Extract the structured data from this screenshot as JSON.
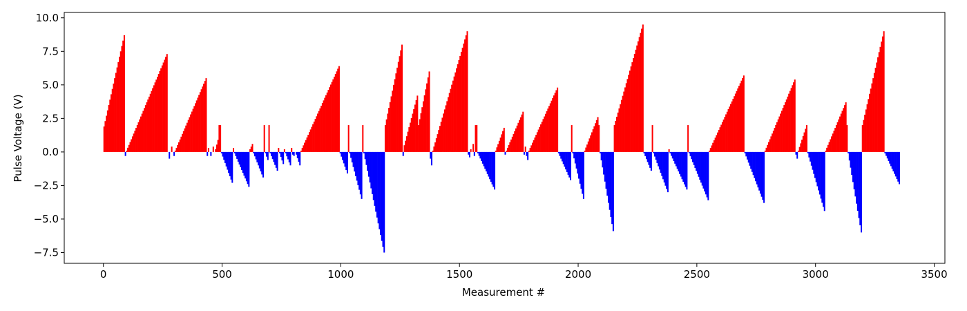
{
  "chart_data": {
    "type": "bar",
    "title": "",
    "xlabel": "Measurement #",
    "ylabel": "Pulse Voltage (V)",
    "xlim": [
      -165,
      3545
    ],
    "ylim": [
      -8.3,
      10.4
    ],
    "xticks": [
      0,
      500,
      1000,
      1500,
      2000,
      2500,
      3000,
      3500
    ],
    "yticks": [
      -7.5,
      -5.0,
      -2.5,
      0.0,
      2.5,
      5.0,
      7.5,
      10.0
    ],
    "colors": {
      "positive": "#ff0000",
      "negative": "#0000ff"
    },
    "grid": false,
    "legend": "none",
    "bin_width": 5,
    "segments": [
      {
        "start": 0,
        "end": 90,
        "from": 1.9,
        "to": 8.7
      },
      {
        "start": 90,
        "end": 95,
        "from": -0.3,
        "to": -0.3
      },
      {
        "start": 95,
        "end": 270,
        "from": 0.1,
        "to": 7.3
      },
      {
        "start": 275,
        "end": 280,
        "from": -0.5,
        "to": -0.5
      },
      {
        "start": 285,
        "end": 290,
        "from": 0.4,
        "to": 0.4
      },
      {
        "start": 295,
        "end": 300,
        "from": -0.3,
        "to": -0.3
      },
      {
        "start": 300,
        "end": 435,
        "from": 0.1,
        "to": 5.5
      },
      {
        "start": 435,
        "end": 440,
        "from": -0.3,
        "to": -0.3
      },
      {
        "start": 440,
        "end": 445,
        "from": 0.3,
        "to": 0.3
      },
      {
        "start": 450,
        "end": 455,
        "from": -0.3,
        "to": -0.3
      },
      {
        "start": 460,
        "end": 465,
        "from": 0.4,
        "to": 0.4
      },
      {
        "start": 470,
        "end": 485,
        "from": 0.2,
        "to": 0.9
      },
      {
        "start": 485,
        "end": 495,
        "from": 2.0,
        "to": 2.0
      },
      {
        "start": 495,
        "end": 545,
        "from": -0.1,
        "to": -2.3
      },
      {
        "start": 545,
        "end": 550,
        "from": 0.3,
        "to": 0.3
      },
      {
        "start": 550,
        "end": 615,
        "from": -0.1,
        "to": -2.6
      },
      {
        "start": 615,
        "end": 630,
        "from": 0.2,
        "to": 0.6
      },
      {
        "start": 630,
        "end": 675,
        "from": -0.1,
        "to": -1.9
      },
      {
        "start": 675,
        "end": 680,
        "from": 2.0,
        "to": 2.0
      },
      {
        "start": 680,
        "end": 695,
        "from": -0.1,
        "to": -0.6
      },
      {
        "start": 695,
        "end": 700,
        "from": 2.0,
        "to": 2.0
      },
      {
        "start": 700,
        "end": 735,
        "from": -0.1,
        "to": -1.4
      },
      {
        "start": 735,
        "end": 740,
        "from": 0.3,
        "to": 0.3
      },
      {
        "start": 740,
        "end": 760,
        "from": -0.1,
        "to": -0.9
      },
      {
        "start": 760,
        "end": 765,
        "from": 0.2,
        "to": 0.2
      },
      {
        "start": 765,
        "end": 790,
        "from": -0.1,
        "to": -1.0
      },
      {
        "start": 790,
        "end": 795,
        "from": 0.3,
        "to": 0.3
      },
      {
        "start": 795,
        "end": 805,
        "from": -0.2,
        "to": -0.3
      },
      {
        "start": 810,
        "end": 830,
        "from": -0.2,
        "to": -1.0
      },
      {
        "start": 830,
        "end": 995,
        "from": 0.1,
        "to": 6.4
      },
      {
        "start": 995,
        "end": 1030,
        "from": -0.1,
        "to": -1.6
      },
      {
        "start": 1030,
        "end": 1035,
        "from": 2.0,
        "to": 2.0
      },
      {
        "start": 1035,
        "end": 1090,
        "from": -0.1,
        "to": -3.5
      },
      {
        "start": 1090,
        "end": 1095,
        "from": 2.0,
        "to": 2.0
      },
      {
        "start": 1095,
        "end": 1185,
        "from": -0.1,
        "to": -7.5
      },
      {
        "start": 1185,
        "end": 1260,
        "from": 2.0,
        "to": 8.0
      },
      {
        "start": 1260,
        "end": 1265,
        "from": -0.3,
        "to": -0.3
      },
      {
        "start": 1265,
        "end": 1325,
        "from": 0.5,
        "to": 4.2
      },
      {
        "start": 1325,
        "end": 1375,
        "from": 2.0,
        "to": 6.0
      },
      {
        "start": 1375,
        "end": 1385,
        "from": -0.5,
        "to": -1.0
      },
      {
        "start": 1385,
        "end": 1535,
        "from": 0.1,
        "to": 9.0
      },
      {
        "start": 1535,
        "end": 1545,
        "from": -0.2,
        "to": -0.4
      },
      {
        "start": 1545,
        "end": 1550,
        "from": 0.2,
        "to": 0.2
      },
      {
        "start": 1555,
        "end": 1560,
        "from": 0.6,
        "to": 0.6
      },
      {
        "start": 1560,
        "end": 1565,
        "from": -0.3,
        "to": -0.3
      },
      {
        "start": 1565,
        "end": 1575,
        "from": 2.0,
        "to": 2.0
      },
      {
        "start": 1575,
        "end": 1650,
        "from": -0.1,
        "to": -2.8
      },
      {
        "start": 1650,
        "end": 1690,
        "from": 0.1,
        "to": 1.8
      },
      {
        "start": 1690,
        "end": 1695,
        "from": -0.2,
        "to": -0.2
      },
      {
        "start": 1695,
        "end": 1770,
        "from": 0.1,
        "to": 3.0
      },
      {
        "start": 1770,
        "end": 1775,
        "from": -0.2,
        "to": -0.2
      },
      {
        "start": 1775,
        "end": 1780,
        "from": 0.4,
        "to": 0.4
      },
      {
        "start": 1780,
        "end": 1790,
        "from": -0.3,
        "to": -0.6
      },
      {
        "start": 1790,
        "end": 1915,
        "from": 0.1,
        "to": 4.8
      },
      {
        "start": 1915,
        "end": 1970,
        "from": -0.1,
        "to": -2.1
      },
      {
        "start": 1970,
        "end": 1975,
        "from": 2.0,
        "to": 2.0
      },
      {
        "start": 1975,
        "end": 2025,
        "from": -0.1,
        "to": -3.5
      },
      {
        "start": 2025,
        "end": 2085,
        "from": 0.1,
        "to": 2.6
      },
      {
        "start": 2085,
        "end": 2090,
        "from": 2.0,
        "to": 2.0
      },
      {
        "start": 2090,
        "end": 2150,
        "from": -0.1,
        "to": -5.9
      },
      {
        "start": 2150,
        "end": 2275,
        "from": 2.0,
        "to": 9.5
      },
      {
        "start": 2275,
        "end": 2310,
        "from": -0.1,
        "to": -1.4
      },
      {
        "start": 2310,
        "end": 2315,
        "from": 2.0,
        "to": 2.0
      },
      {
        "start": 2315,
        "end": 2380,
        "from": -0.1,
        "to": -3.0
      },
      {
        "start": 2380,
        "end": 2385,
        "from": 0.2,
        "to": 0.2
      },
      {
        "start": 2385,
        "end": 2460,
        "from": -0.1,
        "to": -2.8
      },
      {
        "start": 2460,
        "end": 2465,
        "from": 2.0,
        "to": 2.0
      },
      {
        "start": 2465,
        "end": 2550,
        "from": -0.1,
        "to": -3.6
      },
      {
        "start": 2550,
        "end": 2700,
        "from": 0.1,
        "to": 5.7
      },
      {
        "start": 2700,
        "end": 2785,
        "from": -0.1,
        "to": -3.8
      },
      {
        "start": 2785,
        "end": 2915,
        "from": 0.1,
        "to": 5.4
      },
      {
        "start": 2915,
        "end": 2925,
        "from": -0.2,
        "to": -0.5
      },
      {
        "start": 2925,
        "end": 2965,
        "from": 0.1,
        "to": 2.0
      },
      {
        "start": 2965,
        "end": 3040,
        "from": -0.1,
        "to": -4.4
      },
      {
        "start": 3040,
        "end": 3130,
        "from": 0.1,
        "to": 3.7
      },
      {
        "start": 3130,
        "end": 3135,
        "from": 2.0,
        "to": 2.0
      },
      {
        "start": 3135,
        "end": 3195,
        "from": -0.1,
        "to": -6.0
      },
      {
        "start": 3195,
        "end": 3290,
        "from": 2.0,
        "to": 9.0
      },
      {
        "start": 3290,
        "end": 3355,
        "from": -0.1,
        "to": -2.4
      }
    ]
  }
}
